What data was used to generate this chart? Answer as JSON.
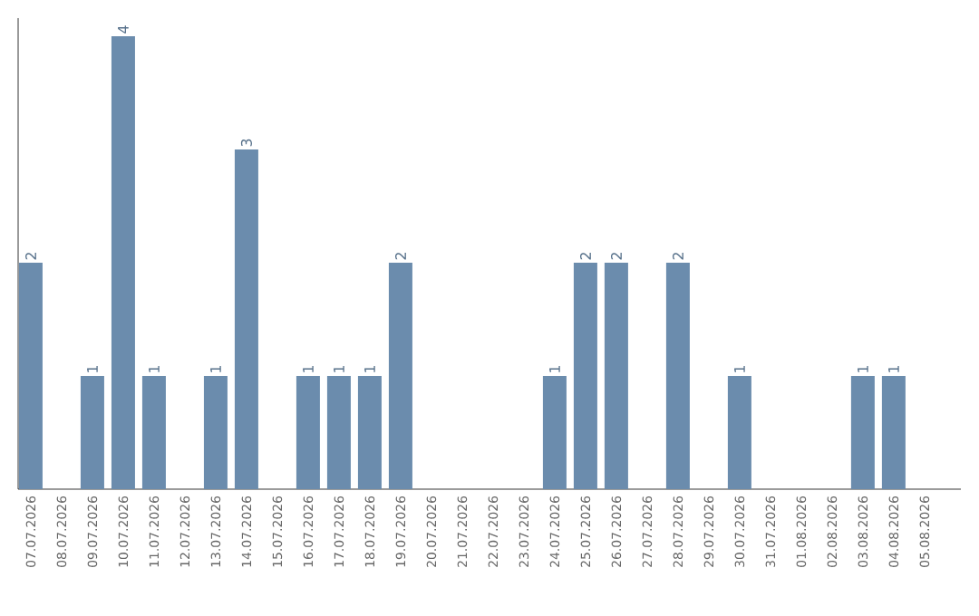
{
  "chart_data": {
    "type": "bar",
    "categories": [
      "07.07.2026",
      "08.07.2026",
      "09.07.2026",
      "10.07.2026",
      "11.07.2026",
      "12.07.2026",
      "13.07.2026",
      "14.07.2026",
      "15.07.2026",
      "16.07.2026",
      "17.07.2026",
      "18.07.2026",
      "19.07.2026",
      "20.07.2026",
      "21.07.2026",
      "22.07.2026",
      "23.07.2026",
      "24.07.2026",
      "25.07.2026",
      "26.07.2026",
      "27.07.2026",
      "28.07.2026",
      "29.07.2026",
      "30.07.2026",
      "31.07.2026",
      "01.08.2026",
      "02.08.2026",
      "03.08.2026",
      "04.08.2026",
      "05.08.2026"
    ],
    "values": [
      2,
      0,
      1,
      4,
      1,
      0,
      1,
      3,
      0,
      1,
      1,
      1,
      2,
      0,
      0,
      0,
      0,
      1,
      2,
      2,
      0,
      2,
      0,
      1,
      0,
      0,
      0,
      1,
      1,
      0
    ],
    "value_labels": [
      "2",
      null,
      "1",
      "4",
      "1",
      null,
      "1",
      "3",
      null,
      "1",
      "1",
      "1",
      "2",
      null,
      null,
      null,
      null,
      "1",
      "2",
      "2",
      null,
      "2",
      null,
      "1",
      null,
      null,
      null,
      "1",
      "1",
      null
    ],
    "color": "#6b8cad"
  }
}
